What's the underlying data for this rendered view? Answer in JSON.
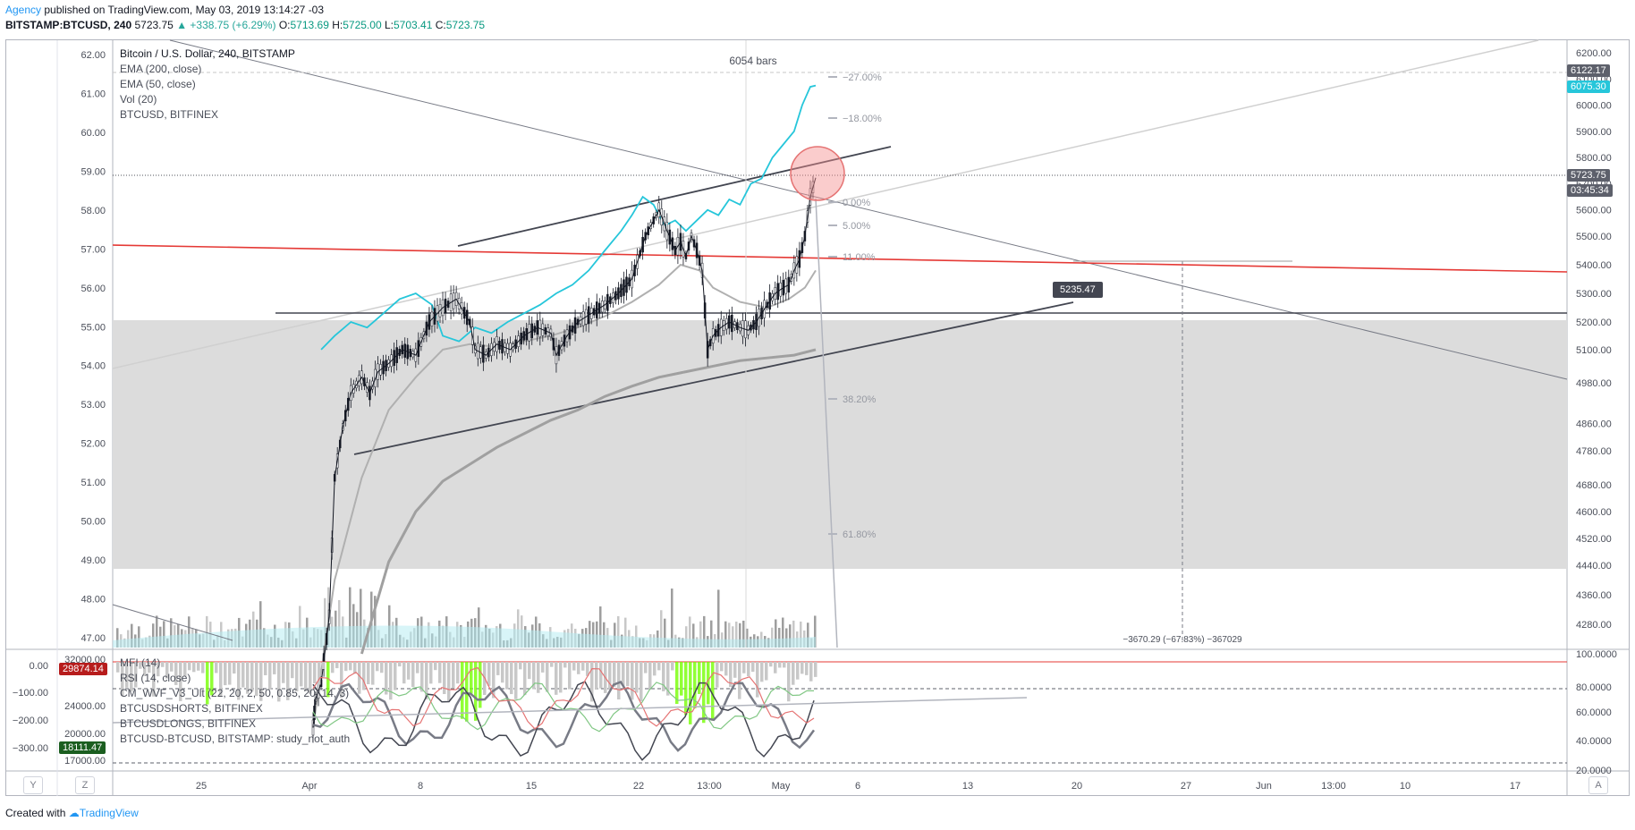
{
  "header": {
    "author": "Agency",
    "published": "published on TradingView.com, May 03, 2019 13:14:27 -03",
    "symbol": "BITSTAMP:BTCUSD, 240",
    "last": "5723.75",
    "change": "▲ +338.75 (+6.29%)",
    "o_label": "O:",
    "o_value": "5713.69",
    "h_label": "H:",
    "h_value": "5725.00",
    "l_label": "L:",
    "l_value": "5703.41",
    "c_label": "C:",
    "c_value": "5723.75"
  },
  "legend": {
    "title": "Bitcoin / U.S. Dollar, 240, BITSTAMP",
    "items": [
      "EMA (200, close)",
      "EMA (50, close)",
      "Vol (20)",
      "BTCUSD, BITFINEX"
    ]
  },
  "legend2": {
    "items": [
      "MFI (14)",
      "RSI (14, close)",
      "CM_WVF_V3_Ult (22, 20, 2, 50, 0.85, 20, 14, 3)",
      "BTCUSDSHORTS, BITFINEX",
      "BTCUSDLONGS, BITFINEX",
      "BTCUSD-BTCUSD, BITSTAMP: study_not_auth"
    ]
  },
  "tags": {
    "bars": "6054 bars",
    "price_6122": "6122.17",
    "price_6075": "6075.30",
    "price_last": "5723.75",
    "countdown": "03:45:34",
    "tag_5235": "5235.47",
    "measure": "−3670.29 (−67.83%) −367029",
    "lower_29874": "29874.14",
    "lower_18111": "18111.47"
  },
  "fib_labels": [
    "−27.00%",
    "−18.00%",
    "0.00%",
    "5.00%",
    "11.00%",
    "38.20%",
    "61.80%"
  ],
  "buttons": {
    "y": "Y",
    "z": "Z",
    "a": "A"
  },
  "footer": {
    "created": "Created with",
    "brand": "TradingView"
  },
  "chart_data": {
    "type": "line",
    "title": "Bitcoin / U.S. Dollar, 240, BITSTAMP",
    "right_axis_ticks": [
      "6200.00",
      "6100.00",
      "6000.00",
      "5900.00",
      "5800.00",
      "5700.00",
      "5600.00",
      "5500.00",
      "5400.00",
      "5300.00",
      "5200.00",
      "5100.00",
      "4980.00",
      "4860.00",
      "4780.00",
      "4680.00",
      "4600.00",
      "4520.00",
      "4440.00",
      "4360.00",
      "4280.00"
    ],
    "left_axis_ticks": [
      "62.00",
      "61.00",
      "60.00",
      "59.00",
      "58.00",
      "57.00",
      "56.00",
      "55.00",
      "54.00",
      "53.00",
      "52.00",
      "51.00",
      "50.00",
      "49.00",
      "48.00",
      "47.00"
    ],
    "x_ticks": [
      "25",
      "Apr",
      "8",
      "15",
      "22",
      "13:00",
      "May",
      "6",
      "13",
      "20",
      "27",
      "Jun",
      "13:00",
      "10",
      "17"
    ],
    "lower_right_ticks": [
      "100.0000",
      "80.0000",
      "60.0000",
      "40.0000",
      "20.0000"
    ],
    "lower_left_ticks": [
      "0.00",
      "−100.00",
      "−200.00",
      "−300.00"
    ],
    "lower_left_ticks2": [
      "32000.00",
      "24000.00",
      "20000.00",
      "17000.00"
    ],
    "price_series": [
      [
        4120,
        4000
      ],
      [
        4130,
        4080
      ],
      [
        4150,
        4120
      ],
      [
        4180,
        4300
      ],
      [
        4200,
        4700
      ],
      [
        4230,
        4850
      ],
      [
        4260,
        4950
      ],
      [
        4300,
        5000
      ],
      [
        4330,
        4950
      ],
      [
        4360,
        5020
      ],
      [
        4400,
        5050
      ],
      [
        4450,
        5100
      ],
      [
        4500,
        5080
      ],
      [
        4550,
        5200
      ],
      [
        4600,
        5250
      ],
      [
        4650,
        5280
      ],
      [
        4700,
        5200
      ],
      [
        4720,
        5100
      ],
      [
        4760,
        5080
      ],
      [
        4800,
        5120
      ],
      [
        4850,
        5100
      ],
      [
        4900,
        5150
      ],
      [
        4950,
        5180
      ],
      [
        5000,
        5160
      ],
      [
        5020,
        5080
      ],
      [
        5060,
        5150
      ],
      [
        5100,
        5200
      ],
      [
        5150,
        5230
      ],
      [
        5200,
        5260
      ],
      [
        5250,
        5300
      ],
      [
        5300,
        5350
      ],
      [
        5350,
        5500
      ],
      [
        5400,
        5600
      ],
      [
        5430,
        5520
      ],
      [
        5460,
        5450
      ],
      [
        5480,
        5480
      ],
      [
        5500,
        5430
      ],
      [
        5520,
        5500
      ],
      [
        5540,
        5450
      ],
      [
        5560,
        5380
      ],
      [
        5580,
        5100
      ],
      [
        5600,
        5150
      ],
      [
        5630,
        5180
      ],
      [
        5660,
        5200
      ],
      [
        5700,
        5180
      ],
      [
        5730,
        5170
      ],
      [
        5760,
        5200
      ],
      [
        5800,
        5260
      ],
      [
        5830,
        5300
      ],
      [
        5860,
        5320
      ],
      [
        5880,
        5330
      ],
      [
        5900,
        5380
      ],
      [
        5920,
        5420
      ],
      [
        5940,
        5500
      ],
      [
        5960,
        5650
      ],
      [
        5980,
        5723
      ]
    ],
    "overlay_series": [
      [
        4150,
        5100
      ],
      [
        4200,
        5150
      ],
      [
        4260,
        5200
      ],
      [
        4320,
        5180
      ],
      [
        4380,
        5230
      ],
      [
        4440,
        5280
      ],
      [
        4500,
        5300
      ],
      [
        4560,
        5260
      ],
      [
        4600,
        5150
      ],
      [
        4660,
        5130
      ],
      [
        4720,
        5180
      ],
      [
        4780,
        5160
      ],
      [
        4840,
        5200
      ],
      [
        4900,
        5230
      ],
      [
        4960,
        5260
      ],
      [
        5020,
        5300
      ],
      [
        5080,
        5330
      ],
      [
        5140,
        5380
      ],
      [
        5200,
        5450
      ],
      [
        5260,
        5520
      ],
      [
        5300,
        5580
      ],
      [
        5340,
        5650
      ],
      [
        5380,
        5620
      ],
      [
        5420,
        5540
      ],
      [
        5460,
        5560
      ],
      [
        5500,
        5520
      ],
      [
        5540,
        5560
      ],
      [
        5580,
        5600
      ],
      [
        5620,
        5580
      ],
      [
        5660,
        5640
      ],
      [
        5700,
        5620
      ],
      [
        5740,
        5700
      ],
      [
        5780,
        5720
      ],
      [
        5820,
        5800
      ],
      [
        5860,
        5850
      ],
      [
        5900,
        5900
      ],
      [
        5930,
        6000
      ],
      [
        5960,
        6070
      ],
      [
        5980,
        6075
      ]
    ],
    "ema50_series": [
      [
        4120,
        4000
      ],
      [
        4200,
        4400
      ],
      [
        4300,
        4700
      ],
      [
        4400,
        4900
      ],
      [
        4500,
        5000
      ],
      [
        4600,
        5100
      ],
      [
        4700,
        5120
      ],
      [
        4800,
        5110
      ],
      [
        4900,
        5130
      ],
      [
        5000,
        5150
      ],
      [
        5100,
        5180
      ],
      [
        5200,
        5220
      ],
      [
        5300,
        5270
      ],
      [
        5400,
        5330
      ],
      [
        5480,
        5400
      ],
      [
        5550,
        5380
      ],
      [
        5600,
        5320
      ],
      [
        5700,
        5270
      ],
      [
        5800,
        5250
      ],
      [
        5880,
        5280
      ],
      [
        5940,
        5320
      ],
      [
        5980,
        5380
      ]
    ],
    "ema200_series": [
      [
        4300,
        4200
      ],
      [
        4400,
        4450
      ],
      [
        4500,
        4600
      ],
      [
        4600,
        4690
      ],
      [
        4700,
        4740
      ],
      [
        4800,
        4790
      ],
      [
        4900,
        4830
      ],
      [
        5000,
        4870
      ],
      [
        5100,
        4900
      ],
      [
        5200,
        4940
      ],
      [
        5300,
        4970
      ],
      [
        5400,
        5000
      ],
      [
        5500,
        5020
      ],
      [
        5600,
        5040
      ],
      [
        5700,
        5060
      ],
      [
        5800,
        5070
      ],
      [
        5900,
        5080
      ],
      [
        5980,
        5100
      ]
    ]
  }
}
